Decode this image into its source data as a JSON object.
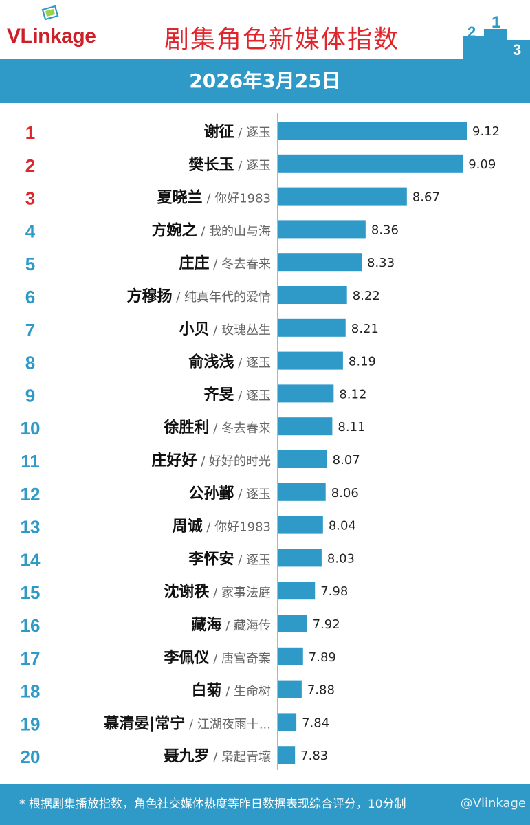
{
  "header": {
    "logo": "VLinkage",
    "title": "剧集角色新媒体指数",
    "podium_digits": [
      "2",
      "1",
      "3"
    ]
  },
  "date": "2026年3月25日",
  "footer": {
    "note": "* 根据剧集播放指数，角色社交媒体热度等昨日数据表现综合评分，10分制",
    "watermark": "@Vlinkage"
  },
  "colors": {
    "bar": "#2f9ac7",
    "rank_top3": "#e0262d",
    "rank_other": "#2f9ac7",
    "band": "#2f9ac7"
  },
  "chart_data": {
    "type": "bar",
    "orientation": "horizontal",
    "xlim": [
      7.7,
      9.3
    ],
    "categories": [
      "谢征",
      "樊长玉",
      "夏晓兰",
      "方婉之",
      "庄庄",
      "方穆扬",
      "小贝",
      "俞浅浅",
      "齐旻",
      "徐胜利",
      "庄好好",
      "公孙鄞",
      "周诚",
      "李怀安",
      "沈谢秩",
      "藏海",
      "李佩仪",
      "白菊",
      "慕清晏|常宁",
      "聂九罗"
    ],
    "dramas": [
      "逐玉",
      "逐玉",
      "你好1983",
      "我的山与海",
      "冬去春来",
      "纯真年代的爱情",
      "玫瑰丛生",
      "逐玉",
      "逐玉",
      "冬去春来",
      "好好的时光",
      "逐玉",
      "你好1983",
      "逐玉",
      "家事法庭",
      "藏海传",
      "唐宫奇案",
      "生命树",
      "江湖夜雨十...",
      "枭起青壤"
    ],
    "ranks": [
      "1",
      "2",
      "3",
      "4",
      "5",
      "6",
      "7",
      "8",
      "9",
      "10",
      "11",
      "12",
      "13",
      "14",
      "15",
      "16",
      "17",
      "18",
      "19",
      "20"
    ],
    "values": [
      9.12,
      9.09,
      8.67,
      8.36,
      8.33,
      8.22,
      8.21,
      8.19,
      8.12,
      8.11,
      8.07,
      8.06,
      8.04,
      8.03,
      7.98,
      7.92,
      7.89,
      7.88,
      7.84,
      7.83
    ],
    "labels": [
      "9.12",
      "9.09",
      "8.67",
      "8.36",
      "8.33",
      "8.22",
      "8.21",
      "8.19",
      "8.12",
      "8.11",
      "8.07",
      "8.06",
      "8.04",
      "8.03",
      "7.98",
      "7.92",
      "7.89",
      "7.88",
      "7.84",
      "7.83"
    ]
  }
}
